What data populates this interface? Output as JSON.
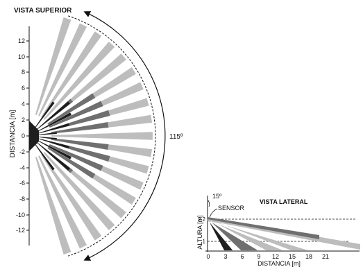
{
  "top_view": {
    "title": "VISTA SUPERIOR",
    "ylabel": "DISTANCIA [m]",
    "ticks": [
      "12",
      "10",
      "8",
      "6",
      "4",
      "2",
      "0",
      "-2",
      "-4",
      "-6",
      "-8",
      "-10",
      "-12"
    ],
    "angle_label": "115º",
    "coverage_angle_deg": 115
  },
  "side_view": {
    "title": "VISTA LATERAL",
    "sensor_label": "SENSOR",
    "angle_label": "15º",
    "ylabel": "ALTURA [m]",
    "y_ticks": [
      "2.2",
      "1"
    ],
    "x_ticks": [
      "0",
      "3",
      "6",
      "9",
      "12",
      "15",
      "18",
      "21"
    ],
    "xlabel": "DISTANCIA [m]",
    "mount_height_m": 2.2
  },
  "colors": {
    "light_beam": "#bdbdbd",
    "mid_beam": "#6f6f6f",
    "dark_beam": "#1e1e1e"
  }
}
